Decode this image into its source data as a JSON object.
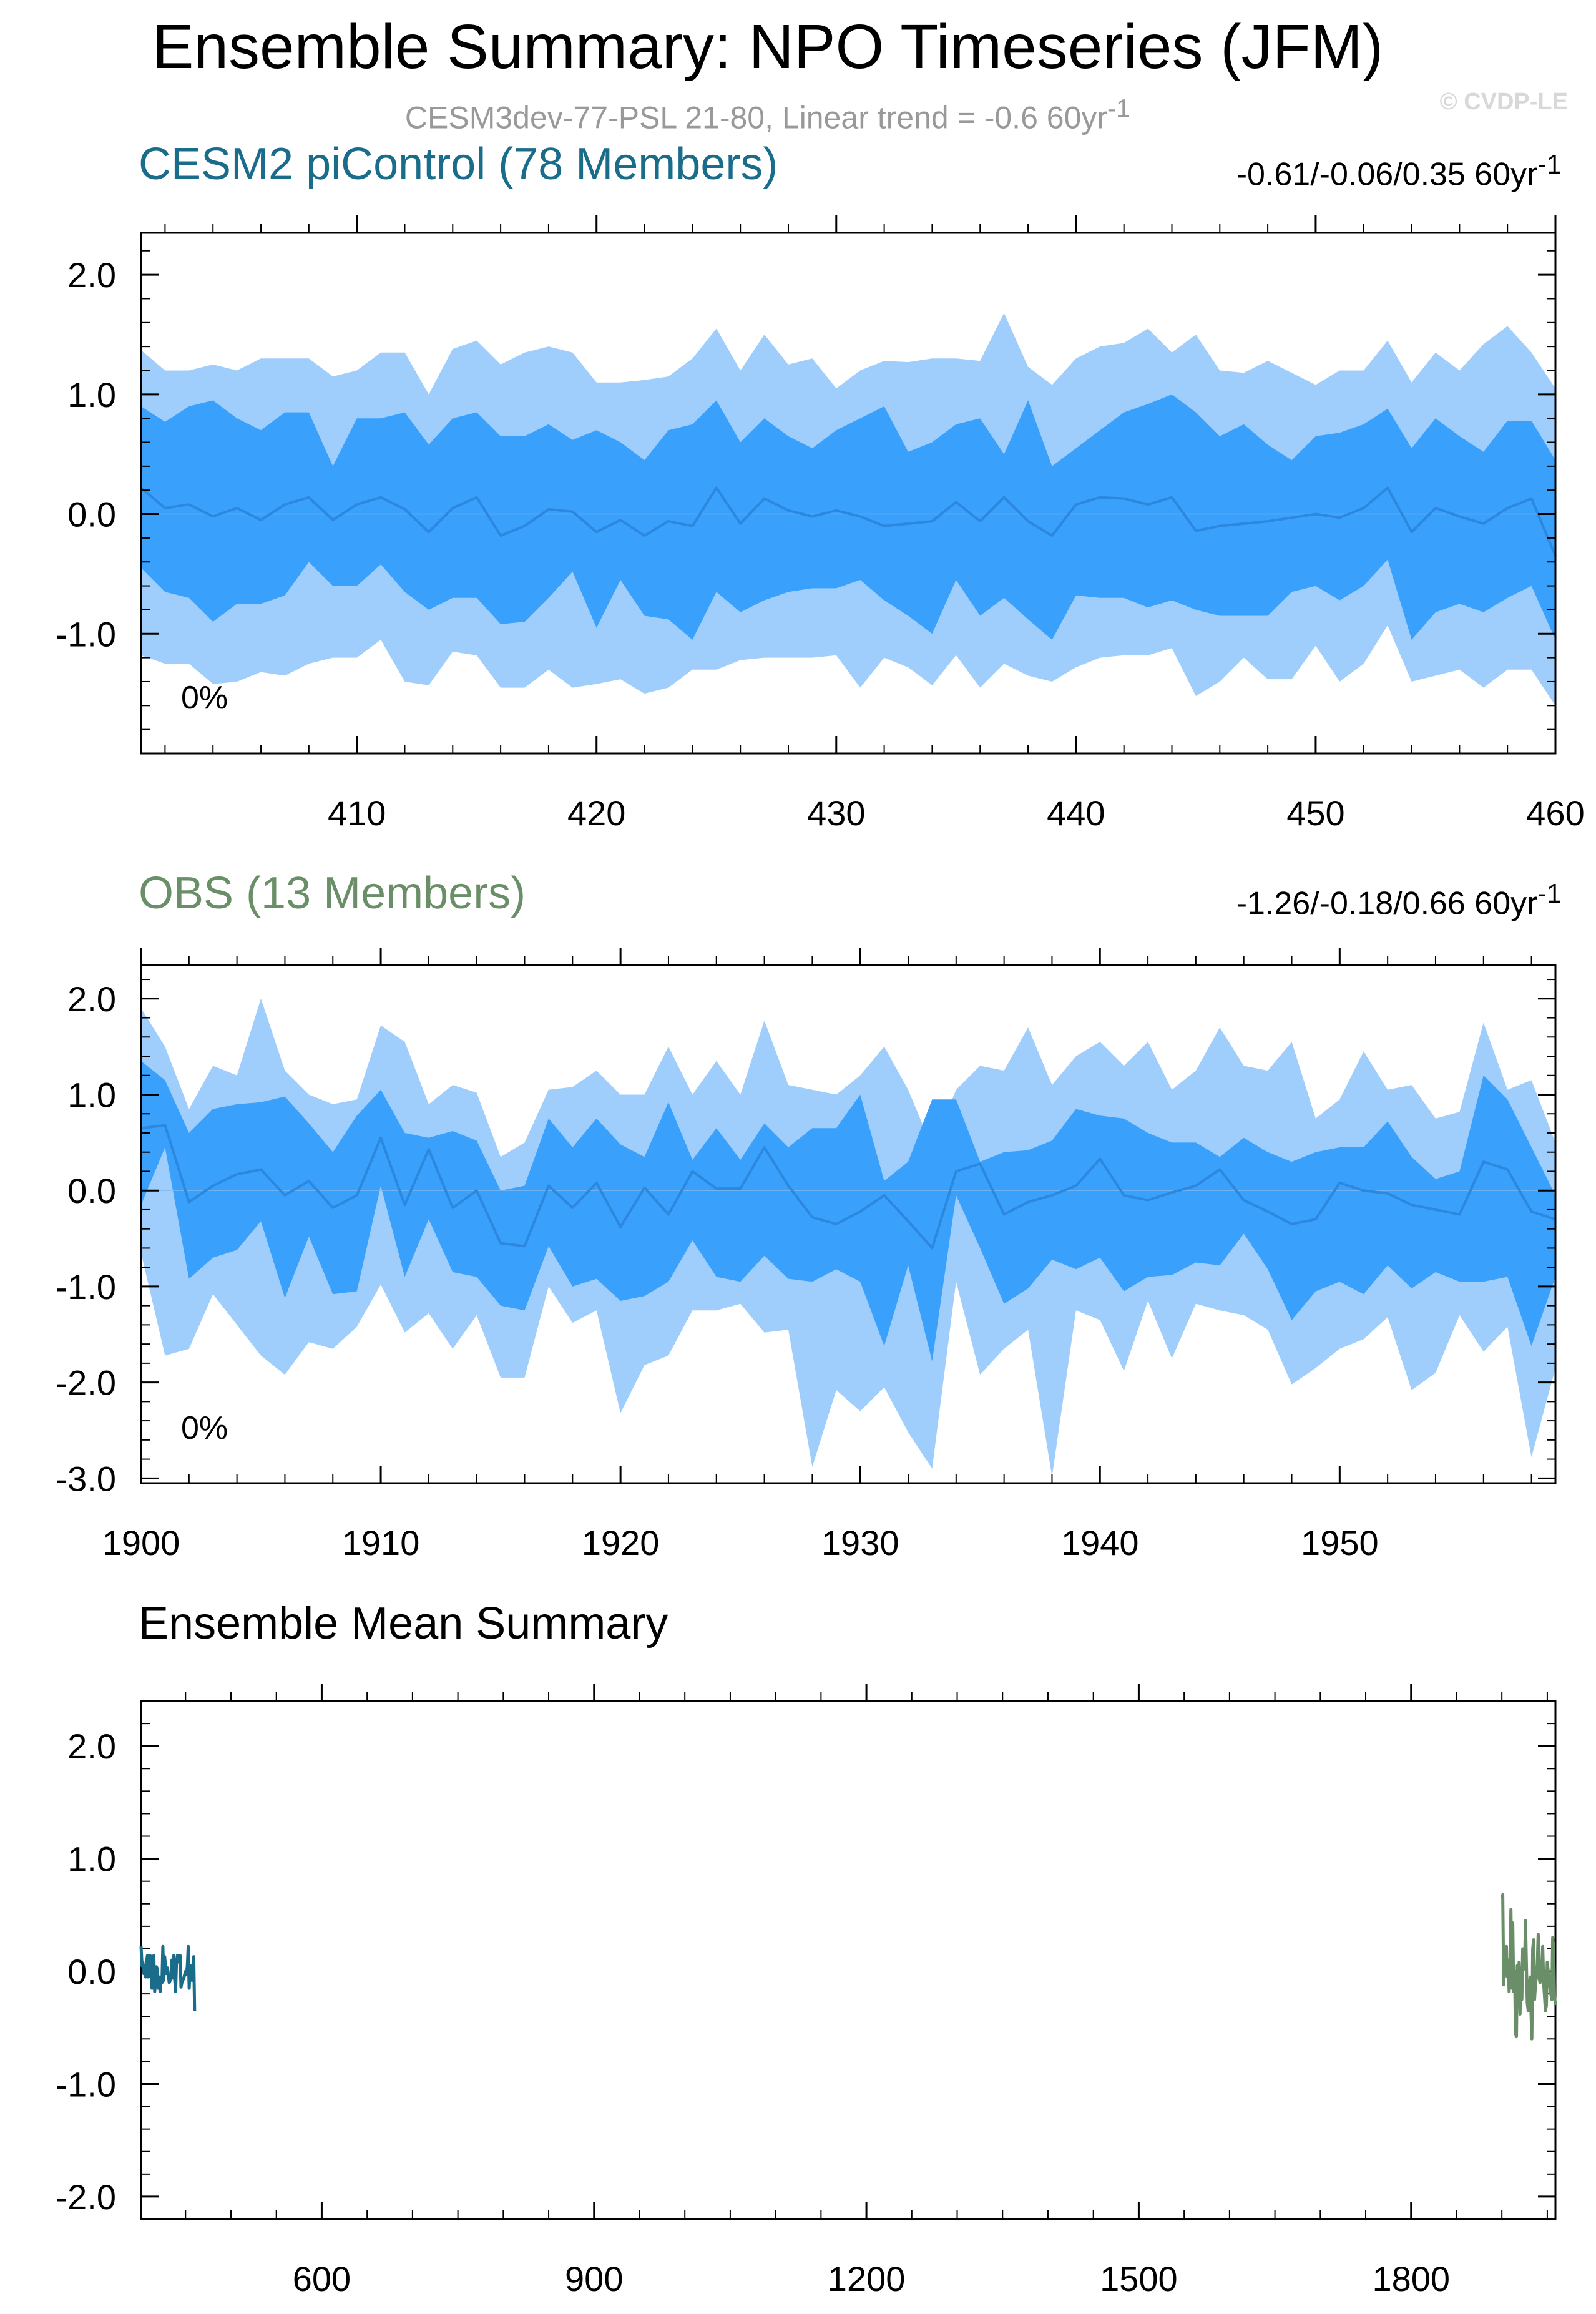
{
  "title": "Ensemble Summary: NPO Timeseries (JFM)",
  "subtitle": "CESM3dev-77-PSL 21-80, Linear trend = -0.6 60yr",
  "subtitle_sup": "-1",
  "watermark": "© CVDP-LE",
  "colors": {
    "outer_band": "#9fcdfc",
    "inner_band": "#39a0fb",
    "mean_line": "#2c87de",
    "model_color": "#1a6d8a",
    "obs_color": "#6a8f68"
  },
  "chart_data": [
    {
      "type": "area",
      "name": "panel1",
      "title": "CESM2 piControl (78 Members)",
      "stats": "-0.61/-0.06/0.35 60yr",
      "stats_sup": "-1",
      "percent_label": "0%",
      "x": [
        401,
        402,
        403,
        404,
        405,
        406,
        407,
        408,
        409,
        410,
        411,
        412,
        413,
        414,
        415,
        416,
        417,
        418,
        419,
        420,
        421,
        422,
        423,
        424,
        425,
        426,
        427,
        428,
        429,
        430,
        431,
        432,
        433,
        434,
        435,
        436,
        437,
        438,
        439,
        440,
        441,
        442,
        443,
        444,
        445,
        446,
        447,
        448,
        449,
        450,
        451,
        452,
        453,
        454,
        455,
        456,
        457,
        458,
        459,
        460
      ],
      "xlim": [
        401,
        460
      ],
      "ylim": [
        -2.0,
        2.35
      ],
      "xticks": [
        410,
        420,
        430,
        440,
        450,
        460
      ],
      "xtick_labels": [
        "410",
        "420",
        "430",
        "440",
        "450",
        "460"
      ],
      "yticks": [
        2.0,
        1.0,
        0.0,
        -1.0
      ],
      "ytick_labels": [
        "2.0",
        "1.0",
        "0.0",
        "-1.0"
      ],
      "outer_upper": [
        1.37,
        1.2,
        1.2,
        1.25,
        1.2,
        1.3,
        1.3,
        1.3,
        1.15,
        1.2,
        1.35,
        1.35,
        1.0,
        1.38,
        1.45,
        1.25,
        1.35,
        1.4,
        1.35,
        1.1,
        1.1,
        1.12,
        1.15,
        1.3,
        1.55,
        1.2,
        1.5,
        1.25,
        1.3,
        1.05,
        1.2,
        1.28,
        1.27,
        1.3,
        1.3,
        1.28,
        1.68,
        1.23,
        1.08,
        1.3,
        1.4,
        1.43,
        1.55,
        1.35,
        1.5,
        1.2,
        1.18,
        1.28,
        1.18,
        1.08,
        1.2,
        1.2,
        1.45,
        1.1,
        1.35,
        1.2,
        1.42,
        1.57,
        1.35,
        1.05
      ],
      "inner_upper": [
        0.9,
        0.77,
        0.9,
        0.95,
        0.8,
        0.7,
        0.85,
        0.85,
        0.4,
        0.8,
        0.8,
        0.85,
        0.58,
        0.8,
        0.85,
        0.65,
        0.65,
        0.75,
        0.62,
        0.7,
        0.6,
        0.45,
        0.7,
        0.75,
        0.95,
        0.6,
        0.8,
        0.65,
        0.55,
        0.7,
        0.8,
        0.9,
        0.52,
        0.6,
        0.75,
        0.8,
        0.5,
        0.95,
        0.4,
        0.55,
        0.7,
        0.85,
        0.92,
        1.0,
        0.85,
        0.65,
        0.75,
        0.58,
        0.45,
        0.65,
        0.68,
        0.75,
        0.88,
        0.55,
        0.8,
        0.65,
        0.52,
        0.78,
        0.78,
        0.45
      ],
      "mean": [
        0.22,
        0.05,
        0.08,
        -0.02,
        0.05,
        -0.05,
        0.08,
        0.14,
        -0.05,
        0.08,
        0.14,
        0.04,
        -0.15,
        0.05,
        0.14,
        -0.18,
        -0.1,
        0.04,
        0.02,
        -0.15,
        -0.05,
        -0.18,
        -0.06,
        -0.1,
        0.22,
        -0.08,
        0.13,
        0.03,
        -0.02,
        0.03,
        -0.02,
        -0.1,
        -0.08,
        -0.06,
        0.1,
        -0.06,
        0.14,
        -0.06,
        -0.18,
        0.08,
        0.14,
        0.13,
        0.08,
        0.14,
        -0.14,
        -0.1,
        -0.08,
        -0.06,
        -0.03,
        0.0,
        -0.03,
        0.05,
        0.22,
        -0.15,
        0.05,
        -0.02,
        -0.08,
        0.05,
        0.13,
        -0.35
      ],
      "inner_lower": [
        -0.45,
        -0.65,
        -0.7,
        -0.9,
        -0.75,
        -0.75,
        -0.68,
        -0.4,
        -0.6,
        -0.6,
        -0.42,
        -0.65,
        -0.8,
        -0.7,
        -0.7,
        -0.92,
        -0.9,
        -0.7,
        -0.48,
        -0.95,
        -0.55,
        -0.85,
        -0.88,
        -1.05,
        -0.65,
        -0.82,
        -0.72,
        -0.65,
        -0.62,
        -0.62,
        -0.55,
        -0.72,
        -0.85,
        -1.0,
        -0.55,
        -0.85,
        -0.7,
        -0.88,
        -1.05,
        -0.68,
        -0.7,
        -0.7,
        -0.78,
        -0.72,
        -0.8,
        -0.85,
        -0.85,
        -0.85,
        -0.65,
        -0.6,
        -0.72,
        -0.6,
        -0.38,
        -1.05,
        -0.82,
        -0.75,
        -0.82,
        -0.7,
        -0.6,
        -1.05
      ],
      "outer_lower": [
        -1.18,
        -1.25,
        -1.25,
        -1.42,
        -1.4,
        -1.32,
        -1.35,
        -1.25,
        -1.2,
        -1.2,
        -1.05,
        -1.4,
        -1.43,
        -1.15,
        -1.18,
        -1.45,
        -1.45,
        -1.3,
        -1.45,
        -1.42,
        -1.38,
        -1.5,
        -1.45,
        -1.3,
        -1.3,
        -1.22,
        -1.2,
        -1.2,
        -1.2,
        -1.18,
        -1.45,
        -1.2,
        -1.28,
        -1.43,
        -1.18,
        -1.45,
        -1.25,
        -1.35,
        -1.4,
        -1.28,
        -1.2,
        -1.18,
        -1.18,
        -1.12,
        -1.52,
        -1.4,
        -1.2,
        -1.38,
        -1.38,
        -1.1,
        -1.4,
        -1.25,
        -0.93,
        -1.4,
        -1.35,
        -1.3,
        -1.45,
        -1.3,
        -1.3,
        -1.6
      ]
    },
    {
      "type": "area",
      "name": "panel2",
      "title": "OBS (13 Members)",
      "stats": "-1.26/-0.18/0.66 60yr",
      "stats_sup": "-1",
      "percent_label": "0%",
      "x": [
        1900,
        1901,
        1902,
        1903,
        1904,
        1905,
        1906,
        1907,
        1908,
        1909,
        1910,
        1911,
        1912,
        1913,
        1914,
        1915,
        1916,
        1917,
        1918,
        1919,
        1920,
        1921,
        1922,
        1923,
        1924,
        1925,
        1926,
        1927,
        1928,
        1929,
        1930,
        1931,
        1932,
        1933,
        1934,
        1935,
        1936,
        1937,
        1938,
        1939,
        1940,
        1941,
        1942,
        1943,
        1944,
        1945,
        1946,
        1947,
        1948,
        1949,
        1950,
        1951,
        1952,
        1953,
        1954,
        1955,
        1956,
        1957,
        1958,
        1959
      ],
      "xlim": [
        1900,
        1959
      ],
      "ylim": [
        -3.05,
        2.35
      ],
      "xticks": [
        1900,
        1910,
        1920,
        1930,
        1940,
        1950
      ],
      "xtick_labels": [
        "1900",
        "1910",
        "1920",
        "1930",
        "1940",
        "1950"
      ],
      "yticks": [
        2.0,
        1.0,
        0.0,
        -1.0,
        -2.0,
        -3.0
      ],
      "ytick_labels": [
        "2.0",
        "1.0",
        "0.0",
        "-1.0",
        "-2.0",
        "-3.0"
      ],
      "outer_upper": [
        1.9,
        1.5,
        0.85,
        1.3,
        1.2,
        2.0,
        1.25,
        1.0,
        0.9,
        0.95,
        1.72,
        1.55,
        0.9,
        1.1,
        1.02,
        0.35,
        0.5,
        1.05,
        1.08,
        1.25,
        1.0,
        1.0,
        1.5,
        1.0,
        1.35,
        1.0,
        1.77,
        1.1,
        1.05,
        1.0,
        1.2,
        1.5,
        1.05,
        0.45,
        1.05,
        1.3,
        1.25,
        1.7,
        1.1,
        1.4,
        1.55,
        1.3,
        1.55,
        1.05,
        1.25,
        1.7,
        1.3,
        1.25,
        1.55,
        0.75,
        0.95,
        1.45,
        1.05,
        1.1,
        0.75,
        0.82,
        1.75,
        1.05,
        1.15,
        0.5
      ],
      "inner_upper": [
        1.35,
        1.15,
        0.6,
        0.85,
        0.9,
        0.92,
        0.98,
        0.7,
        0.4,
        0.78,
        1.05,
        0.6,
        0.55,
        0.62,
        0.52,
        0.0,
        0.05,
        0.75,
        0.45,
        0.75,
        0.48,
        0.35,
        0.92,
        0.32,
        0.65,
        0.32,
        0.7,
        0.45,
        0.65,
        0.65,
        1.0,
        0.1,
        0.3,
        0.95,
        0.95,
        0.3,
        0.4,
        0.42,
        0.52,
        0.85,
        0.78,
        0.75,
        0.6,
        0.5,
        0.5,
        0.35,
        0.55,
        0.4,
        0.3,
        0.4,
        0.45,
        0.45,
        0.72,
        0.35,
        0.12,
        0.2,
        1.2,
        0.95,
        0.45,
        -0.05
      ],
      "mean": [
        0.65,
        0.68,
        -0.12,
        0.05,
        0.17,
        0.22,
        -0.05,
        0.1,
        -0.18,
        -0.05,
        0.55,
        -0.15,
        0.43,
        -0.18,
        0.0,
        -0.55,
        -0.58,
        0.05,
        -0.18,
        0.08,
        -0.38,
        0.03,
        -0.25,
        0.2,
        0.02,
        0.02,
        0.45,
        0.05,
        -0.28,
        -0.35,
        -0.22,
        -0.05,
        -0.32,
        -0.6,
        0.2,
        0.28,
        -0.25,
        -0.12,
        -0.05,
        0.05,
        0.33,
        -0.05,
        -0.1,
        -0.02,
        0.05,
        0.22,
        -0.1,
        -0.22,
        -0.35,
        -0.3,
        0.08,
        0.0,
        -0.03,
        -0.15,
        -0.2,
        -0.25,
        0.3,
        0.22,
        -0.22,
        -0.3
      ],
      "inner_lower": [
        -0.15,
        0.45,
        -0.92,
        -0.7,
        -0.62,
        -0.32,
        -1.12,
        -0.48,
        -1.08,
        -1.05,
        0.05,
        -0.9,
        -0.3,
        -0.85,
        -0.9,
        -1.2,
        -1.25,
        -0.58,
        -1.0,
        -0.92,
        -1.15,
        -1.1,
        -0.95,
        -0.52,
        -0.9,
        -0.95,
        -0.68,
        -0.92,
        -0.95,
        -0.82,
        -0.95,
        -1.62,
        -0.78,
        -1.78,
        -0.05,
        -0.6,
        -1.18,
        -1.02,
        -0.72,
        -0.82,
        -0.7,
        -1.05,
        -0.9,
        -0.88,
        -0.75,
        -0.78,
        -0.45,
        -0.82,
        -1.35,
        -1.05,
        -0.95,
        -1.08,
        -0.78,
        -1.02,
        -0.85,
        -0.95,
        -0.95,
        -0.9,
        -1.62,
        -0.9
      ],
      "outer_lower": [
        -0.65,
        -1.72,
        -1.65,
        -1.08,
        -1.4,
        -1.72,
        -1.92,
        -1.58,
        -1.65,
        -1.42,
        -0.98,
        -1.48,
        -1.28,
        -1.65,
        -1.3,
        -1.95,
        -1.95,
        -1.0,
        -1.38,
        -1.25,
        -2.32,
        -1.82,
        -1.72,
        -1.25,
        -1.25,
        -1.18,
        -1.48,
        -1.45,
        -2.88,
        -2.08,
        -2.3,
        -2.05,
        -2.52,
        -2.9,
        -0.95,
        -1.92,
        -1.65,
        -1.45,
        -2.98,
        -1.25,
        -1.35,
        -1.88,
        -1.15,
        -1.75,
        -1.18,
        -1.25,
        -1.3,
        -1.45,
        -2.02,
        -1.85,
        -1.65,
        -1.55,
        -1.32,
        -2.08,
        -1.9,
        -1.3,
        -1.68,
        -1.42,
        -2.78,
        -1.85
      ]
    },
    {
      "type": "line",
      "name": "panel3",
      "title": "Ensemble Mean Summary",
      "xlim": [
        401,
        1959
      ],
      "ylim": [
        -2.2,
        2.4
      ],
      "xticks": [
        600,
        900,
        1200,
        1500,
        1800
      ],
      "xtick_labels": [
        "600",
        "900",
        "1200",
        "1500",
        "1800"
      ],
      "yticks": [
        2.0,
        1.0,
        0.0,
        -1.0,
        -2.0
      ],
      "ytick_labels": [
        "2.0",
        "1.0",
        "0.0",
        "-1.0",
        "-2.0"
      ],
      "series": [
        {
          "name": "CESM2 piControl",
          "source": "panel1",
          "color_key": "model_color"
        },
        {
          "name": "OBS",
          "source": "panel2",
          "color_key": "obs_color"
        }
      ]
    }
  ]
}
